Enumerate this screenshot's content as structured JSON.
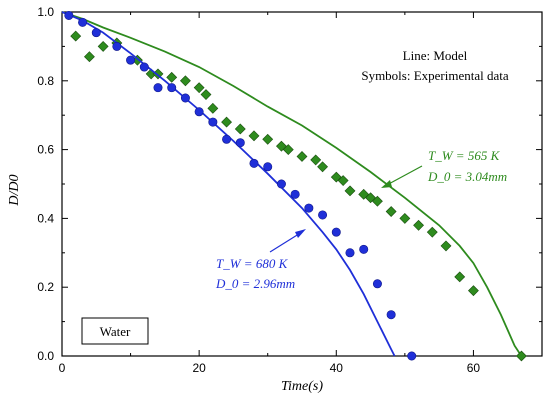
{
  "chart_data": {
    "type": "scatter",
    "xlabel": "Time(s)",
    "ylabel": "D/D0",
    "xlim": [
      0,
      70
    ],
    "ylim": [
      0,
      1.0
    ],
    "x_ticks": [
      "0",
      "20",
      "40",
      "60"
    ],
    "x_tick_values": [
      0,
      20,
      40,
      60
    ],
    "y_ticks": [
      "0.0",
      "0.2",
      "0.4",
      "0.6",
      "0.8",
      "1.0"
    ],
    "y_tick_values": [
      0,
      0.2,
      0.4,
      0.6,
      0.8,
      1.0
    ],
    "grid": false,
    "legend_note": {
      "line1": "Line: Model",
      "line2": "Symbols: Experimental data"
    },
    "fluid_label": "Water",
    "annotations": [
      {
        "line1": "T_W = 565 K",
        "line2": "D_0 = 3.04mm",
        "color": "#2e8b1e"
      },
      {
        "line1": "T_W = 680 K",
        "line2": "D_0 = 2.96mm",
        "color": "#1f2fd8"
      }
    ],
    "series": [
      {
        "color": "#2e8b1e",
        "marker": "diamond",
        "model": [
          [
            0,
            1.0
          ],
          [
            3,
            0.98
          ],
          [
            6,
            0.955
          ],
          [
            10,
            0.925
          ],
          [
            15,
            0.885
          ],
          [
            20,
            0.84
          ],
          [
            25,
            0.785
          ],
          [
            30,
            0.725
          ],
          [
            35,
            0.67
          ],
          [
            40,
            0.605
          ],
          [
            45,
            0.535
          ],
          [
            50,
            0.46
          ],
          [
            55,
            0.38
          ],
          [
            58,
            0.32
          ],
          [
            60,
            0.27
          ],
          [
            62,
            0.2
          ],
          [
            64,
            0.12
          ],
          [
            66,
            0.03
          ],
          [
            67,
            0.0
          ]
        ],
        "points": [
          [
            2,
            0.93
          ],
          [
            4,
            0.87
          ],
          [
            6,
            0.9
          ],
          [
            8,
            0.91
          ],
          [
            11,
            0.86
          ],
          [
            13,
            0.82
          ],
          [
            14,
            0.82
          ],
          [
            16,
            0.81
          ],
          [
            18,
            0.8
          ],
          [
            20,
            0.78
          ],
          [
            21,
            0.76
          ],
          [
            22,
            0.72
          ],
          [
            24,
            0.68
          ],
          [
            26,
            0.66
          ],
          [
            28,
            0.64
          ],
          [
            30,
            0.63
          ],
          [
            32,
            0.61
          ],
          [
            33,
            0.6
          ],
          [
            35,
            0.58
          ],
          [
            37,
            0.57
          ],
          [
            38,
            0.55
          ],
          [
            40,
            0.52
          ],
          [
            41,
            0.51
          ],
          [
            42,
            0.48
          ],
          [
            44,
            0.47
          ],
          [
            45,
            0.46
          ],
          [
            46,
            0.45
          ],
          [
            48,
            0.42
          ],
          [
            50,
            0.4
          ],
          [
            52,
            0.38
          ],
          [
            54,
            0.36
          ],
          [
            56,
            0.32
          ],
          [
            58,
            0.23
          ],
          [
            60,
            0.19
          ],
          [
            67,
            0.0
          ]
        ]
      },
      {
        "color": "#1f2fd8",
        "marker": "circle",
        "model": [
          [
            0,
            1.0
          ],
          [
            3,
            0.975
          ],
          [
            6,
            0.94
          ],
          [
            10,
            0.88
          ],
          [
            15,
            0.8
          ],
          [
            20,
            0.715
          ],
          [
            25,
            0.625
          ],
          [
            30,
            0.53
          ],
          [
            35,
            0.43
          ],
          [
            38,
            0.36
          ],
          [
            40,
            0.31
          ],
          [
            42,
            0.25
          ],
          [
            44,
            0.18
          ],
          [
            46,
            0.1
          ],
          [
            48,
            0.02
          ],
          [
            48.5,
            0.0
          ]
        ],
        "points": [
          [
            1,
            0.99
          ],
          [
            3,
            0.97
          ],
          [
            5,
            0.94
          ],
          [
            8,
            0.9
          ],
          [
            10,
            0.86
          ],
          [
            12,
            0.84
          ],
          [
            14,
            0.78
          ],
          [
            16,
            0.78
          ],
          [
            18,
            0.75
          ],
          [
            20,
            0.71
          ],
          [
            22,
            0.68
          ],
          [
            24,
            0.63
          ],
          [
            26,
            0.62
          ],
          [
            28,
            0.56
          ],
          [
            30,
            0.55
          ],
          [
            32,
            0.5
          ],
          [
            34,
            0.47
          ],
          [
            36,
            0.43
          ],
          [
            38,
            0.41
          ],
          [
            40,
            0.36
          ],
          [
            42,
            0.3
          ],
          [
            44,
            0.31
          ],
          [
            46,
            0.21
          ],
          [
            48,
            0.12
          ],
          [
            51,
            0.0
          ]
        ]
      }
    ]
  }
}
